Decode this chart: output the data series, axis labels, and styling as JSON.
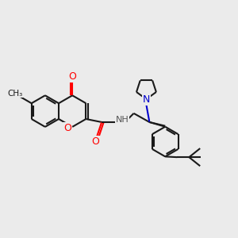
{
  "bg_color": "#ebebeb",
  "bond_color": "#1a1a1a",
  "bond_width": 1.5,
  "atom_colors": {
    "O": "#ff0000",
    "N": "#0000cc",
    "C": "#1a1a1a",
    "H": "#555555"
  },
  "figsize": [
    3.0,
    3.0
  ],
  "dpi": 100,
  "xlim": [
    -3.5,
    4.0
  ],
  "ylim": [
    -3.0,
    3.0
  ]
}
